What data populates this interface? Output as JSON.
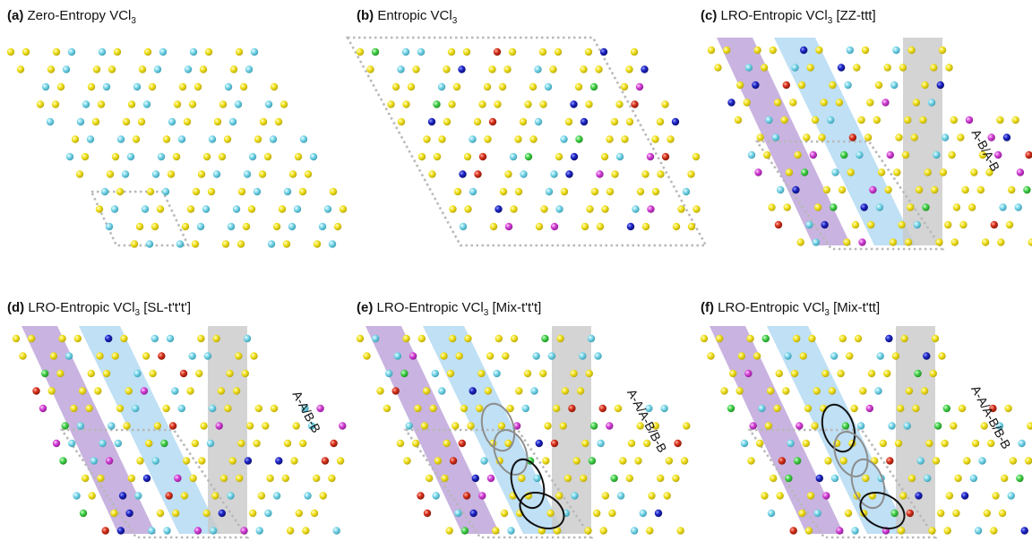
{
  "colors": {
    "yellow": "#f2e21c",
    "cyan": "#79d7ea",
    "magenta": "#d33fd6",
    "green": "#44d14a",
    "blue": "#1c24c4",
    "red": "#d8301c",
    "band_purple": "#b79ad6",
    "band_blue": "#a9d5f2",
    "band_gray": "#c9c9c9",
    "cell_outline": "#b8b8b8",
    "ellipse_gray": "#8d8d8d",
    "ellipse_black": "#111111"
  },
  "panels": [
    {
      "letter": "(a)",
      "title": "Zero-Entropy VCl",
      "sub": "3",
      "suffix": "",
      "side_label": ""
    },
    {
      "letter": "(b)",
      "title": "Entropic VCl",
      "sub": "3",
      "suffix": "",
      "side_label": ""
    },
    {
      "letter": "(c)",
      "title": "LRO-Entropic VCl",
      "sub": "3",
      "suffix": "  [ZZ-ttt]",
      "side_label": "A-B/A-B"
    },
    {
      "letter": "(d)",
      "title": "LRO-Entropic VCl",
      "sub": "3",
      "suffix": "  [SL-t't't']",
      "side_label": "A-A/B-B"
    },
    {
      "letter": "(e)",
      "title": "LRO-Entropic VCl",
      "sub": "3",
      "suffix": "  [Mix-t't't]",
      "side_label": "A-A/A-B/B-B"
    },
    {
      "letter": "(f)",
      "title": "LRO-Entropic VCl",
      "sub": "3",
      "suffix": "  [Mix-t'tt]",
      "side_label": "A-A/A-B/B-B"
    }
  ]
}
